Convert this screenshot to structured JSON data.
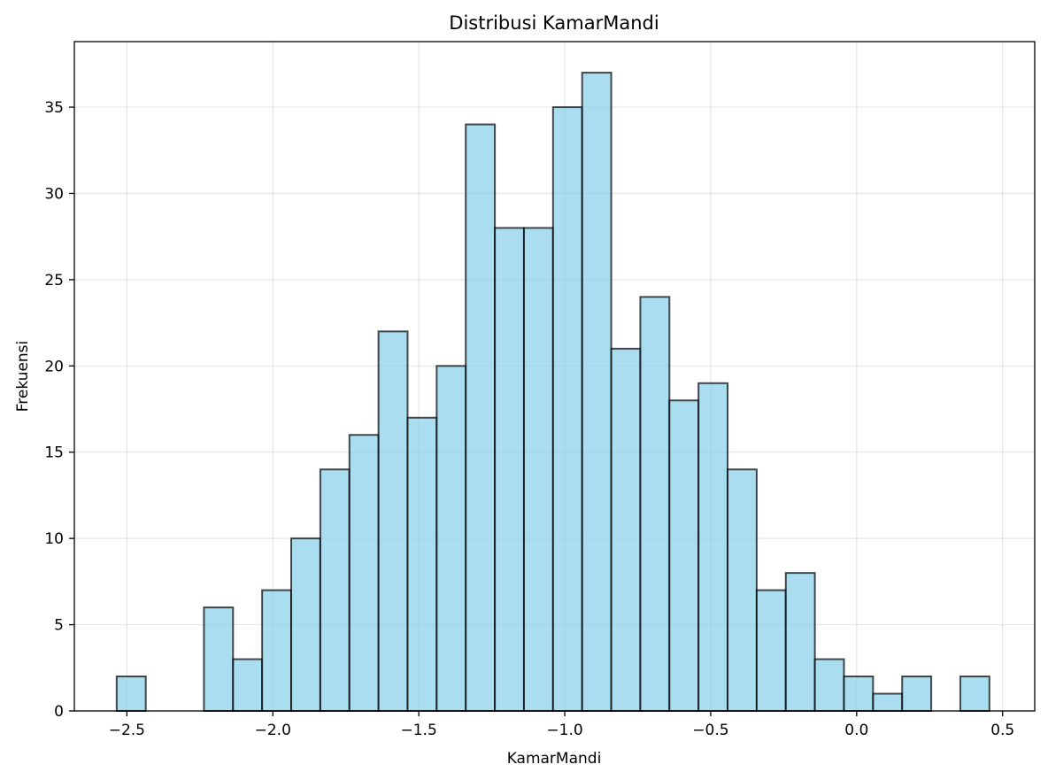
{
  "chart_data": {
    "type": "bar",
    "title": "Distribusi KamarMandi",
    "xlabel": "KamarMandi",
    "ylabel": "Frekuensi",
    "xlim": [
      -2.68,
      0.61
    ],
    "ylim": [
      0,
      38.8
    ],
    "grid": true,
    "bin_start": -2.535,
    "bin_width": 0.09966,
    "counts": [
      2,
      0,
      0,
      6,
      3,
      7,
      10,
      14,
      16,
      22,
      17,
      20,
      34,
      28,
      28,
      35,
      37,
      21,
      24,
      18,
      19,
      14,
      7,
      8,
      3,
      2,
      1,
      2,
      0,
      2
    ],
    "xticks": [
      -2.5,
      -2.0,
      -1.5,
      -1.0,
      -0.5,
      0.0,
      0.5
    ],
    "xtick_labels": [
      "−2.5",
      "−2.0",
      "−1.5",
      "−1.0",
      "−0.5",
      "0.0",
      "0.5"
    ],
    "yticks": [
      0,
      5,
      10,
      15,
      20,
      25,
      30,
      35
    ],
    "ytick_labels": [
      "0",
      "5",
      "10",
      "15",
      "20",
      "25",
      "30",
      "35"
    ],
    "colors": {
      "bar_fill": "#87CEEB",
      "bar_edge": "#000000"
    }
  }
}
